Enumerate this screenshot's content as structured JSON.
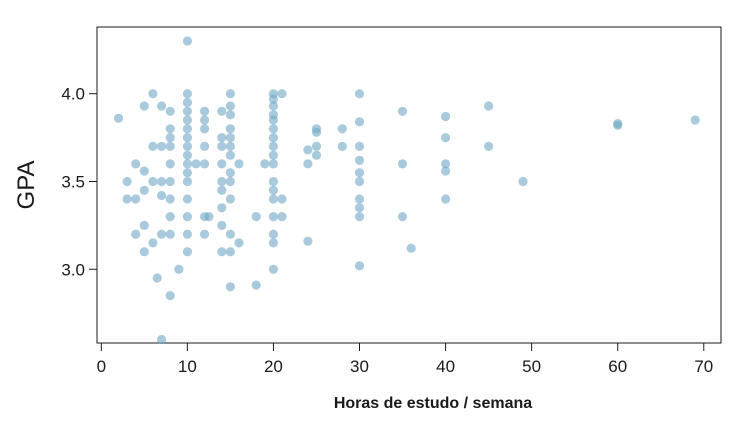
{
  "chart_data": {
    "type": "scatter",
    "title": "",
    "xlabel": "Horas de estudo / semana",
    "ylabel": "GPA",
    "xlim": [
      -0.5,
      72
    ],
    "ylim": [
      2.58,
      4.38
    ],
    "xticks": [
      0,
      10,
      20,
      30,
      40,
      50,
      60,
      70
    ],
    "yticks": [
      3.0,
      3.5,
      4.0
    ],
    "ytick_labels": [
      "3.0",
      "3.5",
      "4.0"
    ],
    "grid": false,
    "legend": "none",
    "point_color": "#6fa7c4",
    "points": [
      {
        "x": 2,
        "y": 3.86
      },
      {
        "x": 3,
        "y": 3.4
      },
      {
        "x": 3,
        "y": 3.5
      },
      {
        "x": 4,
        "y": 3.6
      },
      {
        "x": 4,
        "y": 3.2
      },
      {
        "x": 4,
        "y": 3.4
      },
      {
        "x": 5,
        "y": 3.93
      },
      {
        "x": 5,
        "y": 3.56
      },
      {
        "x": 5,
        "y": 3.45
      },
      {
        "x": 5,
        "y": 3.25
      },
      {
        "x": 5,
        "y": 3.1
      },
      {
        "x": 6,
        "y": 4.0
      },
      {
        "x": 6,
        "y": 3.7
      },
      {
        "x": 6,
        "y": 3.5
      },
      {
        "x": 6,
        "y": 3.15
      },
      {
        "x": 6.5,
        "y": 2.95
      },
      {
        "x": 7,
        "y": 3.93
      },
      {
        "x": 7,
        "y": 3.7
      },
      {
        "x": 7,
        "y": 3.5
      },
      {
        "x": 7,
        "y": 3.42
      },
      {
        "x": 7,
        "y": 3.2
      },
      {
        "x": 7,
        "y": 2.6
      },
      {
        "x": 8,
        "y": 3.9
      },
      {
        "x": 8,
        "y": 3.8
      },
      {
        "x": 8,
        "y": 3.75
      },
      {
        "x": 8,
        "y": 3.7
      },
      {
        "x": 8,
        "y": 3.6
      },
      {
        "x": 8,
        "y": 3.5
      },
      {
        "x": 8,
        "y": 3.4
      },
      {
        "x": 8,
        "y": 3.3
      },
      {
        "x": 8,
        "y": 3.2
      },
      {
        "x": 8,
        "y": 2.85
      },
      {
        "x": 9,
        "y": 3.0
      },
      {
        "x": 10,
        "y": 4.3
      },
      {
        "x": 10,
        "y": 4.0
      },
      {
        "x": 10,
        "y": 3.95
      },
      {
        "x": 10,
        "y": 3.9
      },
      {
        "x": 10,
        "y": 3.85
      },
      {
        "x": 10,
        "y": 3.8
      },
      {
        "x": 10,
        "y": 3.75
      },
      {
        "x": 10,
        "y": 3.7
      },
      {
        "x": 10,
        "y": 3.65
      },
      {
        "x": 10,
        "y": 3.6
      },
      {
        "x": 10,
        "y": 3.55
      },
      {
        "x": 10,
        "y": 3.5
      },
      {
        "x": 10,
        "y": 3.4
      },
      {
        "x": 10,
        "y": 3.3
      },
      {
        "x": 10,
        "y": 3.2
      },
      {
        "x": 10,
        "y": 3.1
      },
      {
        "x": 11,
        "y": 3.6
      },
      {
        "x": 12,
        "y": 3.9
      },
      {
        "x": 12,
        "y": 3.85
      },
      {
        "x": 12,
        "y": 3.8
      },
      {
        "x": 12,
        "y": 3.7
      },
      {
        "x": 12,
        "y": 3.6
      },
      {
        "x": 12,
        "y": 3.3
      },
      {
        "x": 12,
        "y": 3.2
      },
      {
        "x": 12.5,
        "y": 3.3
      },
      {
        "x": 14,
        "y": 3.9
      },
      {
        "x": 14,
        "y": 3.75
      },
      {
        "x": 14,
        "y": 3.7
      },
      {
        "x": 14,
        "y": 3.6
      },
      {
        "x": 14,
        "y": 3.5
      },
      {
        "x": 14,
        "y": 3.45
      },
      {
        "x": 14,
        "y": 3.35
      },
      {
        "x": 14,
        "y": 3.25
      },
      {
        "x": 14,
        "y": 3.1
      },
      {
        "x": 15,
        "y": 4.0
      },
      {
        "x": 15,
        "y": 3.93
      },
      {
        "x": 15,
        "y": 3.88
      },
      {
        "x": 15,
        "y": 3.8
      },
      {
        "x": 15,
        "y": 3.75
      },
      {
        "x": 15,
        "y": 3.7
      },
      {
        "x": 15,
        "y": 3.65
      },
      {
        "x": 15,
        "y": 3.55
      },
      {
        "x": 15,
        "y": 3.5
      },
      {
        "x": 15,
        "y": 3.4
      },
      {
        "x": 15,
        "y": 3.2
      },
      {
        "x": 15,
        "y": 3.1
      },
      {
        "x": 15,
        "y": 2.9
      },
      {
        "x": 16,
        "y": 3.6
      },
      {
        "x": 16,
        "y": 3.15
      },
      {
        "x": 18,
        "y": 3.3
      },
      {
        "x": 18,
        "y": 2.91
      },
      {
        "x": 19,
        "y": 3.6
      },
      {
        "x": 20,
        "y": 4.0
      },
      {
        "x": 20,
        "y": 3.97
      },
      {
        "x": 20,
        "y": 3.93
      },
      {
        "x": 20,
        "y": 3.88
      },
      {
        "x": 20,
        "y": 3.85
      },
      {
        "x": 20,
        "y": 3.8
      },
      {
        "x": 20,
        "y": 3.75
      },
      {
        "x": 20,
        "y": 3.7
      },
      {
        "x": 20,
        "y": 3.65
      },
      {
        "x": 20,
        "y": 3.6
      },
      {
        "x": 20,
        "y": 3.5
      },
      {
        "x": 20,
        "y": 3.45
      },
      {
        "x": 20,
        "y": 3.4
      },
      {
        "x": 20,
        "y": 3.3
      },
      {
        "x": 20,
        "y": 3.2
      },
      {
        "x": 20,
        "y": 3.15
      },
      {
        "x": 20,
        "y": 3.0
      },
      {
        "x": 21,
        "y": 4.0
      },
      {
        "x": 21,
        "y": 3.4
      },
      {
        "x": 21,
        "y": 3.3
      },
      {
        "x": 24,
        "y": 3.6
      },
      {
        "x": 24,
        "y": 3.68
      },
      {
        "x": 24,
        "y": 3.16
      },
      {
        "x": 25,
        "y": 3.8
      },
      {
        "x": 25,
        "y": 3.78
      },
      {
        "x": 25,
        "y": 3.7
      },
      {
        "x": 25,
        "y": 3.65
      },
      {
        "x": 28,
        "y": 3.8
      },
      {
        "x": 28,
        "y": 3.7
      },
      {
        "x": 30,
        "y": 4.0
      },
      {
        "x": 30,
        "y": 3.84
      },
      {
        "x": 30,
        "y": 3.7
      },
      {
        "x": 30,
        "y": 3.62
      },
      {
        "x": 30,
        "y": 3.55
      },
      {
        "x": 30,
        "y": 3.5
      },
      {
        "x": 30,
        "y": 3.4
      },
      {
        "x": 30,
        "y": 3.35
      },
      {
        "x": 30,
        "y": 3.3
      },
      {
        "x": 30,
        "y": 3.02
      },
      {
        "x": 35,
        "y": 3.9
      },
      {
        "x": 35,
        "y": 3.6
      },
      {
        "x": 35,
        "y": 3.3
      },
      {
        "x": 36,
        "y": 3.12
      },
      {
        "x": 40,
        "y": 3.87
      },
      {
        "x": 40,
        "y": 3.75
      },
      {
        "x": 40,
        "y": 3.6
      },
      {
        "x": 40,
        "y": 3.56
      },
      {
        "x": 40,
        "y": 3.4
      },
      {
        "x": 45,
        "y": 3.93
      },
      {
        "x": 45,
        "y": 3.7
      },
      {
        "x": 49,
        "y": 3.5
      },
      {
        "x": 60,
        "y": 3.83
      },
      {
        "x": 60,
        "y": 3.82
      },
      {
        "x": 69,
        "y": 3.85
      }
    ]
  }
}
